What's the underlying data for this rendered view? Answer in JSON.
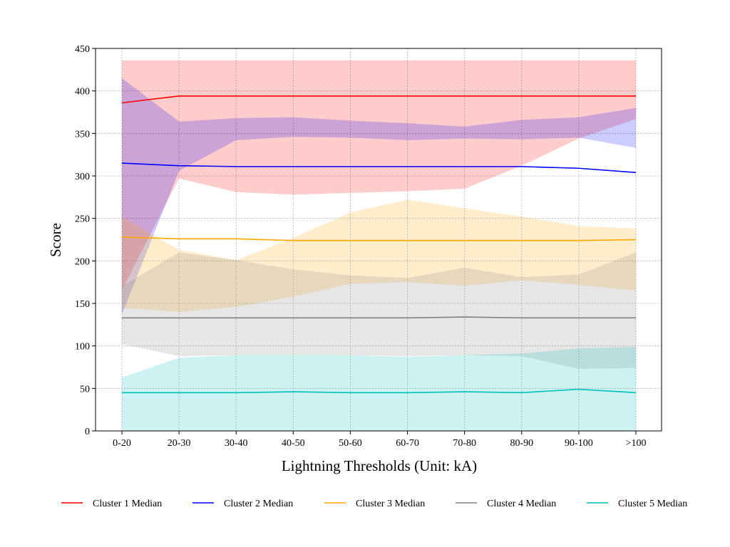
{
  "chart_data": {
    "type": "area",
    "title": "",
    "xlabel": "Lightning Thresholds (Unit: kA)",
    "ylabel": "Score",
    "categories": [
      "0-20",
      "20-30",
      "30-40",
      "40-50",
      "50-60",
      "60-70",
      "70-80",
      "80-90",
      "90-100",
      ">100"
    ],
    "ylim": [
      0,
      450
    ],
    "yticks": [
      0,
      50,
      100,
      150,
      200,
      250,
      300,
      350,
      400,
      450
    ],
    "grid": true,
    "legend_position": "bottom",
    "series": [
      {
        "name": "Cluster 1 Median",
        "color": "#ff0000",
        "values": [
          386,
          394,
          394,
          394,
          394,
          394,
          394,
          394,
          394,
          394
        ],
        "band_upper": [
          436,
          436,
          436,
          436,
          436,
          436,
          436,
          436,
          436,
          436
        ],
        "band_lower": [
          166,
          297,
          281,
          278,
          280,
          282,
          285,
          312,
          344,
          367
        ]
      },
      {
        "name": "Cluster 2 Median",
        "color": "#0000ff",
        "values": [
          315,
          312,
          311,
          311,
          311,
          311,
          311,
          311,
          309,
          304
        ],
        "band_upper": [
          415,
          364,
          368,
          369,
          365,
          362,
          358,
          366,
          369,
          380
        ],
        "band_lower": [
          137,
          306,
          342,
          346,
          345,
          342,
          344,
          343,
          345,
          333
        ]
      },
      {
        "name": "Cluster 3 Median",
        "color": "#ffa500",
        "values": [
          228,
          226,
          226,
          224,
          224,
          224,
          224,
          224,
          224,
          225
        ],
        "band_upper": [
          252,
          213,
          201,
          227,
          257,
          272,
          262,
          252,
          241,
          238
        ],
        "band_lower": [
          145,
          140,
          146,
          158,
          173,
          175,
          171,
          177,
          172,
          165
        ]
      },
      {
        "name": "Cluster 4 Median",
        "color": "#808080",
        "values": [
          133,
          133,
          133,
          133,
          133,
          133,
          134,
          133,
          133,
          133
        ],
        "band_upper": [
          170,
          210,
          201,
          190,
          183,
          180,
          192,
          181,
          184,
          210
        ],
        "band_lower": [
          102,
          88,
          89,
          89,
          89,
          88,
          89,
          88,
          73,
          74
        ]
      },
      {
        "name": "Cluster 5 Median",
        "color": "#00bfbf",
        "values": [
          45,
          45,
          45,
          46,
          45,
          45,
          46,
          45,
          49,
          45
        ],
        "band_upper": [
          63,
          86,
          89,
          89,
          89,
          87,
          89,
          91,
          97,
          99
        ],
        "band_lower": [
          0,
          0,
          0,
          0,
          0,
          0,
          0,
          0,
          0,
          0
        ]
      }
    ]
  }
}
